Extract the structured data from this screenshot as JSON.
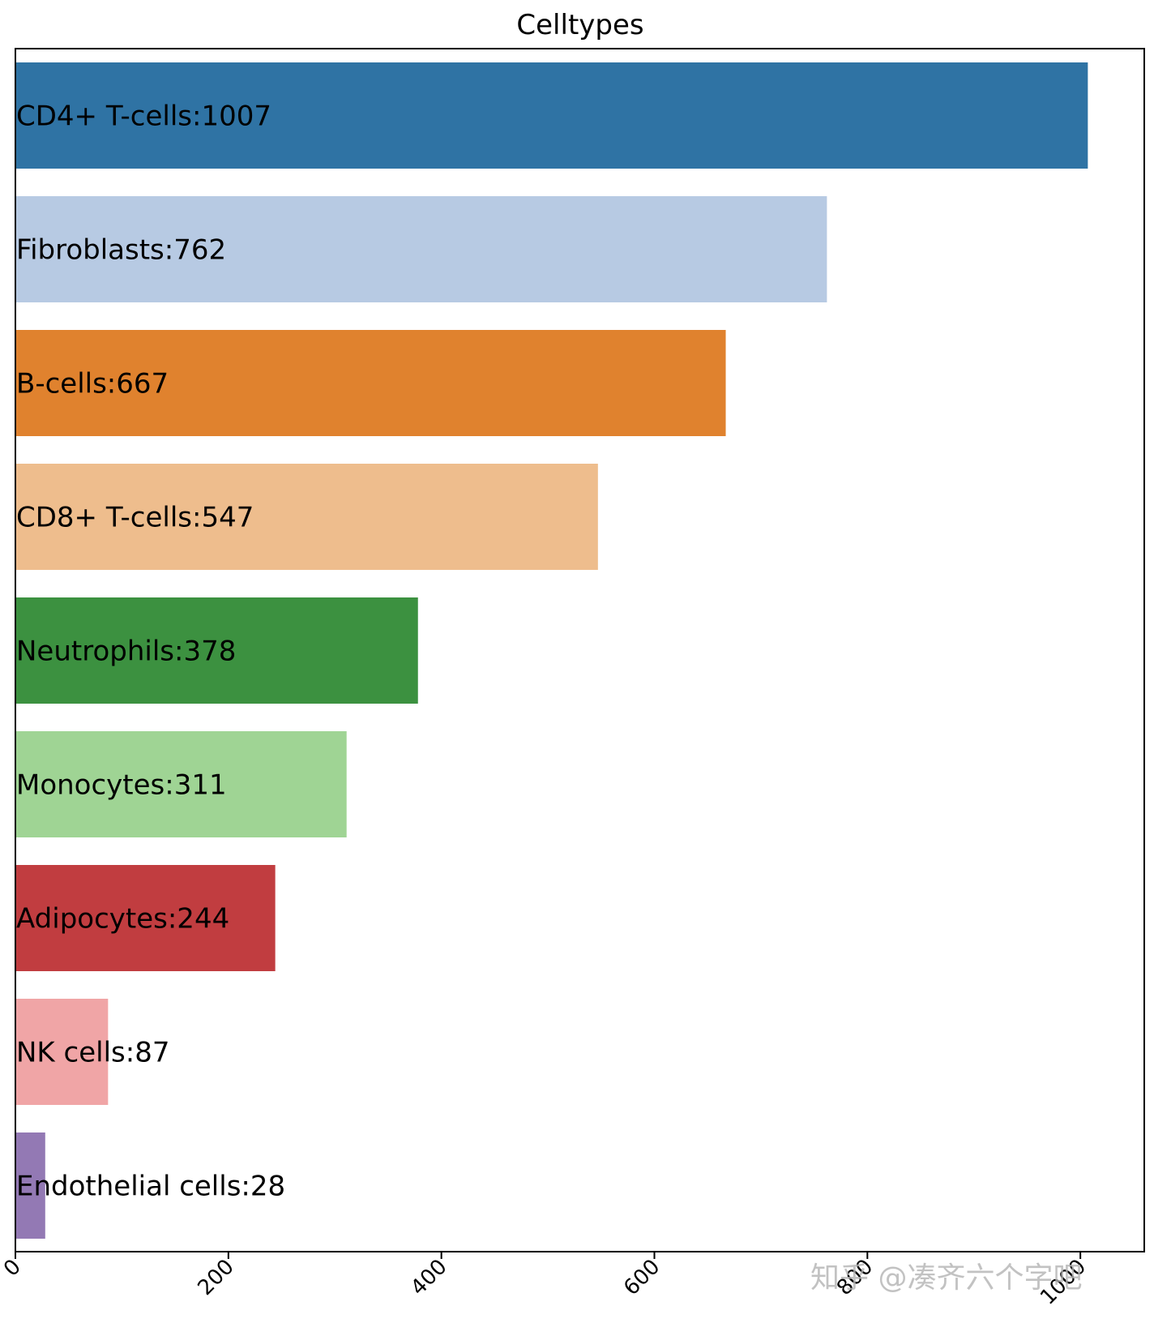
{
  "chart_data": {
    "type": "bar",
    "orientation": "horizontal",
    "title": "Celltypes",
    "xlabel": "",
    "ylabel": "",
    "xlim": [
      0,
      1060
    ],
    "x_ticks": [
      0,
      200,
      400,
      600,
      800,
      1000
    ],
    "grid": false,
    "legend": "none",
    "categories": [
      "CD4+ T-cells",
      "Fibroblasts",
      "B-cells",
      "CD8+ T-cells",
      "Neutrophils",
      "Monocytes",
      "Adipocytes",
      "NK cells",
      "Endothelial cells"
    ],
    "values": [
      1007,
      762,
      667,
      547,
      378,
      311,
      244,
      87,
      28
    ],
    "labels": [
      "CD4+ T-cells:1007",
      "Fibroblasts:762",
      "B-cells:667",
      "CD8+ T-cells:547",
      "Neutrophils:378",
      "Monocytes:311",
      "Adipocytes:244",
      "NK cells:87",
      "Endothelial cells:28"
    ],
    "colors": [
      "#2f73a4",
      "#b7cae3",
      "#e0822e",
      "#eebd8d",
      "#3c9140",
      "#9fd494",
      "#c13d40",
      "#f0a5a6",
      "#9379b4"
    ]
  },
  "watermark": "知乎 @凑齐六个字吧"
}
